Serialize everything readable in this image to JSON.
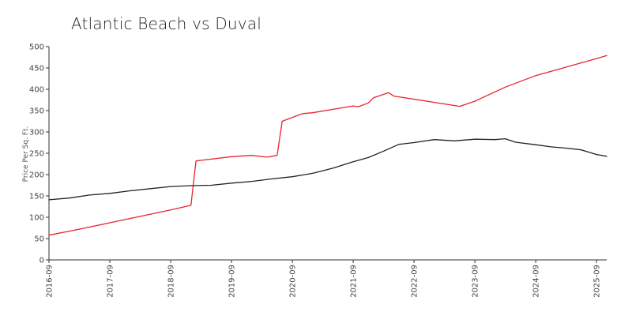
{
  "chart_data": {
    "type": "line",
    "title": "Atlantic Beach vs Duval",
    "ylabel": "Price Per Sq. Ft.",
    "xlabel": "",
    "ylim": [
      0,
      500
    ],
    "xlim": [
      "2016-09",
      "2025-11"
    ],
    "yticks": [
      0,
      50,
      100,
      150,
      200,
      250,
      300,
      350,
      400,
      450,
      500
    ],
    "xticks": [
      "2016-09",
      "2017-09",
      "2018-09",
      "2019-09",
      "2020-09",
      "2021-09",
      "2022-09",
      "2023-09",
      "2024-09",
      "2025-09"
    ],
    "grid": false,
    "legend": "none",
    "series": [
      {
        "color": "#e8232e",
        "points": [
          [
            "2016-09",
            58
          ],
          [
            "2017-03",
            72
          ],
          [
            "2017-09",
            87
          ],
          [
            "2018-03",
            102
          ],
          [
            "2018-09",
            117
          ],
          [
            "2019-01",
            128
          ],
          [
            "2019-02",
            232
          ],
          [
            "2019-09",
            242
          ],
          [
            "2020-01",
            245
          ],
          [
            "2020-04",
            241
          ],
          [
            "2020-06",
            245
          ],
          [
            "2020-07",
            325
          ],
          [
            "2020-11",
            343
          ],
          [
            "2021-01",
            345
          ],
          [
            "2021-05",
            353
          ],
          [
            "2021-09",
            361
          ],
          [
            "2021-10",
            359
          ],
          [
            "2021-12",
            368
          ],
          [
            "2022-01",
            380
          ],
          [
            "2022-04",
            392
          ],
          [
            "2022-05",
            384
          ],
          [
            "2023-06",
            360
          ],
          [
            "2023-09",
            372
          ],
          [
            "2024-03",
            405
          ],
          [
            "2024-09",
            432
          ],
          [
            "2025-09",
            472
          ],
          [
            "2025-11",
            479
          ]
        ]
      },
      {
        "color": "#222222",
        "points": [
          [
            "2016-09",
            141
          ],
          [
            "2017-01",
            145
          ],
          [
            "2017-05",
            152
          ],
          [
            "2017-09",
            156
          ],
          [
            "2018-01",
            162
          ],
          [
            "2018-05",
            167
          ],
          [
            "2018-09",
            172
          ],
          [
            "2019-01",
            174
          ],
          [
            "2019-05",
            175
          ],
          [
            "2019-09",
            180
          ],
          [
            "2020-01",
            184
          ],
          [
            "2020-05",
            190
          ],
          [
            "2020-09",
            195
          ],
          [
            "2021-01",
            203
          ],
          [
            "2021-05",
            215
          ],
          [
            "2021-09",
            230
          ],
          [
            "2021-12",
            240
          ],
          [
            "2022-03",
            255
          ],
          [
            "2022-06",
            271
          ],
          [
            "2022-09",
            275
          ],
          [
            "2023-01",
            282
          ],
          [
            "2023-05",
            279
          ],
          [
            "2023-09",
            283
          ],
          [
            "2024-01",
            282
          ],
          [
            "2024-03",
            284
          ],
          [
            "2024-05",
            276
          ],
          [
            "2024-09",
            270
          ],
          [
            "2024-12",
            265
          ],
          [
            "2025-03",
            262
          ],
          [
            "2025-06",
            258
          ],
          [
            "2025-09",
            247
          ],
          [
            "2025-11",
            243
          ]
        ]
      }
    ]
  }
}
